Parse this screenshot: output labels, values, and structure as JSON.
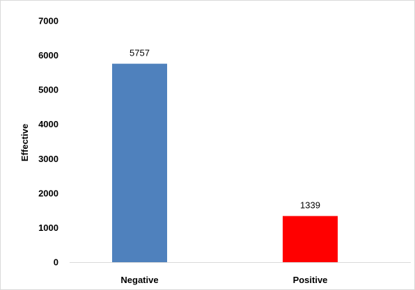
{
  "chart_data": {
    "type": "bar",
    "categories": [
      "Negative",
      "Positive"
    ],
    "values": [
      5757,
      1339
    ],
    "data_labels": [
      "5757",
      "1339"
    ],
    "bar_colors": [
      "#4f81bd",
      "#ff0000"
    ],
    "title": "",
    "xlabel": "",
    "ylabel": "Effective",
    "ylim": [
      0,
      7000
    ],
    "yticks": [
      0,
      1000,
      2000,
      3000,
      4000,
      5000,
      6000,
      7000
    ],
    "grid": false,
    "legend": "none"
  }
}
